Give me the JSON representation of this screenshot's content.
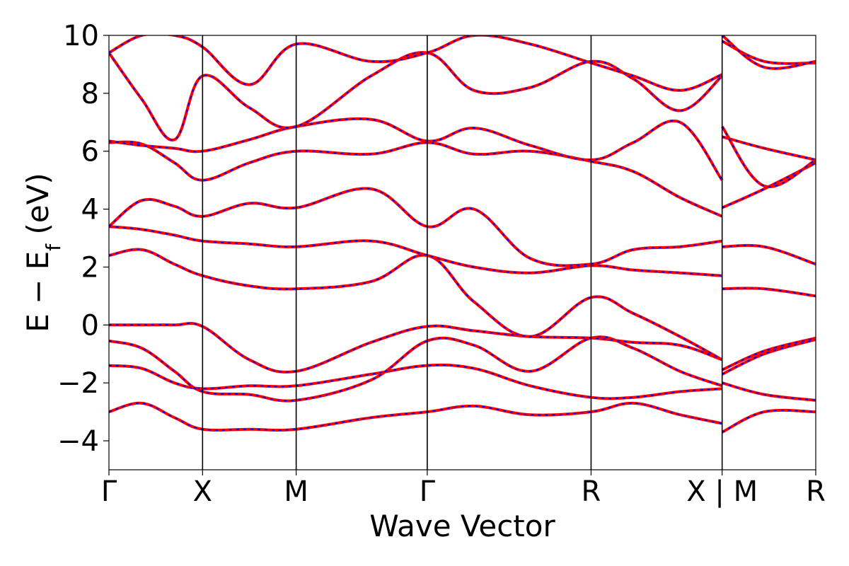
{
  "chart_data": {
    "type": "line",
    "title": "",
    "xlabel": "Wave Vector",
    "ylabel": "E − E_f (eV)",
    "ylabel_parts": {
      "main": "E − E",
      "sub": "f",
      "unit": " (eV)"
    },
    "ylim": [
      -5,
      10
    ],
    "yticks": [
      -4,
      -2,
      0,
      2,
      4,
      6,
      8,
      10
    ],
    "ytick_labels": [
      "−4",
      "−2",
      "0",
      "2",
      "4",
      "6",
      "8",
      "10"
    ],
    "kpath_ticks": [
      0,
      1,
      2,
      3.4,
      5.15,
      6.55,
      7.55
    ],
    "kpath_labels": [
      "Γ",
      "X",
      "M",
      "Γ",
      "R",
      "X | M",
      "R"
    ],
    "xlim": [
      0,
      7.55
    ],
    "grid": false,
    "legend": "none",
    "colors": {
      "primary": "#ff0000",
      "overlay": "#0000ff",
      "vline": "#000000"
    },
    "series_style": "red solid bands overlaid with blue dashed bands (two calculations coinciding)",
    "bands": [
      {
        "x": [
          0,
          0.35,
          0.7,
          1,
          1.5,
          2,
          2.8,
          3.4,
          3.9,
          4.5,
          5.15,
          5.6,
          6.1,
          6.55,
          6.55,
          7.0,
          7.55
        ],
        "y": [
          -3.0,
          -2.7,
          -3.2,
          -3.6,
          -3.6,
          -3.6,
          -3.2,
          -3.0,
          -2.8,
          -3.1,
          -3.0,
          -2.7,
          -3.1,
          -3.4,
          -3.7,
          -3.0,
          -3.0
        ]
      },
      {
        "x": [
          0,
          0.35,
          0.7,
          1,
          1.5,
          2,
          2.8,
          3.4,
          3.9,
          4.5,
          5.15,
          5.6,
          6.1,
          6.55,
          6.55,
          7.0,
          7.55
        ],
        "y": [
          -1.4,
          -1.5,
          -2.0,
          -2.2,
          -2.1,
          -2.1,
          -1.7,
          -1.4,
          -1.5,
          -2.1,
          -2.5,
          -2.5,
          -2.3,
          -2.2,
          -2.0,
          -2.4,
          -2.6
        ]
      },
      {
        "x": [
          0,
          0.35,
          0.7,
          1,
          1.5,
          2,
          2.8,
          3.4,
          3.9,
          4.5,
          5.15,
          5.6,
          6.1,
          6.55,
          6.55,
          7.0,
          7.55
        ],
        "y": [
          -0.55,
          -0.8,
          -1.6,
          -2.3,
          -2.4,
          -2.6,
          -1.9,
          -0.55,
          -0.7,
          -1.6,
          -0.45,
          -0.8,
          -1.6,
          -2.1,
          -1.7,
          -1.0,
          -0.5
        ]
      },
      {
        "x": [
          0,
          0.35,
          0.7,
          1,
          1.5,
          2,
          2.8,
          3.4,
          3.9,
          4.5,
          5.15,
          5.6,
          6.1,
          6.55,
          6.55,
          7.0,
          7.55
        ],
        "y": [
          0.0,
          0.0,
          0.0,
          -0.05,
          -1.2,
          -1.6,
          -0.6,
          -0.05,
          -0.2,
          -0.4,
          -0.45,
          -0.6,
          -0.7,
          -1.2,
          -1.55,
          -0.9,
          -0.45
        ]
      },
      {
        "x": [
          0,
          0.35,
          0.7,
          1,
          1.5,
          2,
          2.8,
          3.4,
          3.9,
          4.5,
          5.15,
          5.6,
          6.1,
          6.55,
          6.55,
          7.0,
          7.55
        ],
        "y": [
          2.4,
          2.6,
          2.1,
          1.7,
          1.35,
          1.25,
          1.5,
          2.4,
          0.8,
          -0.4,
          0.95,
          0.4,
          -0.4,
          -1.2,
          1.25,
          1.25,
          1.0
        ]
      },
      {
        "x": [
          0,
          0.35,
          0.7,
          1,
          1.5,
          2,
          2.8,
          3.4,
          3.9,
          4.5,
          5.15,
          5.6,
          6.1,
          6.55,
          6.55,
          7.0,
          7.55
        ],
        "y": [
          3.4,
          3.3,
          3.1,
          2.9,
          2.8,
          2.7,
          2.9,
          2.4,
          2.0,
          1.8,
          2.05,
          1.9,
          1.8,
          1.7,
          2.7,
          2.7,
          2.1
        ]
      },
      {
        "x": [
          0,
          0.35,
          0.7,
          1,
          1.5,
          2,
          2.8,
          3.4,
          3.9,
          4.5,
          5.15,
          5.6,
          6.1,
          6.55,
          6.55,
          7.0,
          7.55
        ],
        "y": [
          3.4,
          4.3,
          4.1,
          3.75,
          4.2,
          4.05,
          4.7,
          3.4,
          4.0,
          2.3,
          2.1,
          2.6,
          2.7,
          2.9,
          4.05,
          4.7,
          5.6
        ]
      },
      {
        "x": [
          0,
          0.35,
          0.7,
          1,
          1.5,
          2,
          2.8,
          3.4,
          3.9,
          4.5,
          5.15,
          5.6,
          6.1,
          6.55,
          6.55,
          7.0,
          7.55
        ],
        "y": [
          6.3,
          6.25,
          5.6,
          5.0,
          5.6,
          6.0,
          5.9,
          6.3,
          5.9,
          6.0,
          5.65,
          5.3,
          4.4,
          3.75,
          6.5,
          6.1,
          5.7
        ]
      },
      {
        "x": [
          0,
          0.35,
          0.7,
          1,
          1.5,
          2,
          2.8,
          3.4,
          3.9,
          4.5,
          5.15,
          5.6,
          6.1,
          6.55,
          6.55,
          7.0,
          7.55
        ],
        "y": [
          6.35,
          6.2,
          6.1,
          6.0,
          6.4,
          6.85,
          7.1,
          6.35,
          6.8,
          6.2,
          5.7,
          6.3,
          7.0,
          5.0,
          6.85,
          4.8,
          5.7
        ]
      },
      {
        "x": [
          0,
          0.35,
          0.7,
          1,
          1.5,
          2,
          2.8,
          3.4,
          3.9,
          4.5,
          5.15,
          5.6,
          6.1,
          6.55,
          6.55,
          7.0,
          7.55
        ],
        "y": [
          9.4,
          7.8,
          6.4,
          8.6,
          7.5,
          6.85,
          8.6,
          9.4,
          8.1,
          8.2,
          9.1,
          8.5,
          7.4,
          8.6,
          9.8,
          9.1,
          9.05
        ]
      },
      {
        "x": [
          0,
          0.35,
          0.7,
          1,
          1.5,
          2,
          2.8,
          3.4,
          3.9,
          4.5,
          5.15,
          5.6,
          6.1,
          6.55,
          6.55,
          7.0,
          7.55
        ],
        "y": [
          9.4,
          10.0,
          10.0,
          9.6,
          8.3,
          9.7,
          9.1,
          9.4,
          10.0,
          9.7,
          9.05,
          8.6,
          8.1,
          8.65,
          10.0,
          8.9,
          9.1
        ]
      }
    ]
  }
}
